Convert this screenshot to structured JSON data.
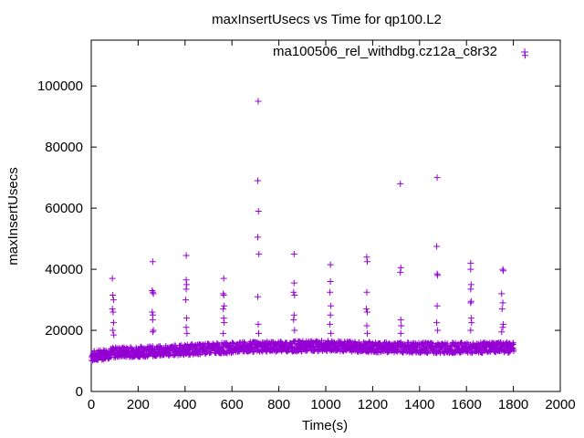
{
  "chart_data": {
    "type": "scatter",
    "title": "maxInsertUsecs vs Time for qp100.L2",
    "xlabel": "Time(s)",
    "ylabel": "maxInsertUsecs",
    "xlim": [
      0,
      2000
    ],
    "ylim": [
      0,
      115000
    ],
    "x_ticks": [
      0,
      200,
      400,
      600,
      800,
      1000,
      1200,
      1400,
      1600,
      1800,
      2000
    ],
    "y_ticks": [
      0,
      20000,
      40000,
      60000,
      80000,
      100000
    ],
    "grid": false,
    "legend_position": "top-right",
    "marker": "+",
    "series": [
      {
        "name": "ma100506_rel_withdbg.cz12a_c8r32",
        "color": "#9400d3",
        "baseline": {
          "x_range": [
            0,
            1800
          ],
          "y_points": [
            [
              0,
              11500
            ],
            [
              100,
              12800
            ],
            [
              300,
              13200
            ],
            [
              500,
              14000
            ],
            [
              700,
              14600
            ],
            [
              1000,
              14900
            ],
            [
              1200,
              14500
            ],
            [
              1500,
              14200
            ],
            [
              1800,
              14400
            ]
          ],
          "spread": 1800
        },
        "spikes": [
          [
            90,
            37000
          ],
          [
            92,
            31500
          ],
          [
            95,
            30000
          ],
          [
            90,
            27000
          ],
          [
            93,
            26000
          ],
          [
            95,
            22500
          ],
          [
            92,
            20000
          ],
          [
            96,
            18500
          ],
          [
            262,
            42500
          ],
          [
            260,
            33000
          ],
          [
            263,
            32500
          ],
          [
            265,
            32000
          ],
          [
            260,
            26000
          ],
          [
            263,
            25000
          ],
          [
            262,
            23500
          ],
          [
            265,
            20000
          ],
          [
            262,
            19500
          ],
          [
            405,
            44500
          ],
          [
            405,
            36500
          ],
          [
            407,
            35000
          ],
          [
            405,
            33500
          ],
          [
            403,
            30000
          ],
          [
            407,
            24000
          ],
          [
            405,
            21000
          ],
          [
            408,
            19000
          ],
          [
            565,
            37000
          ],
          [
            563,
            32000
          ],
          [
            565,
            31500
          ],
          [
            567,
            28000
          ],
          [
            563,
            27000
          ],
          [
            565,
            24000
          ],
          [
            567,
            22500
          ],
          [
            563,
            19000
          ],
          [
            712,
            95000
          ],
          [
            710,
            69000
          ],
          [
            713,
            59000
          ],
          [
            710,
            50500
          ],
          [
            715,
            45000
          ],
          [
            710,
            31000
          ],
          [
            712,
            22000
          ],
          [
            714,
            19000
          ],
          [
            865,
            45000
          ],
          [
            865,
            35500
          ],
          [
            863,
            32500
          ],
          [
            867,
            31500
          ],
          [
            865,
            25000
          ],
          [
            863,
            23500
          ],
          [
            867,
            20000
          ],
          [
            1020,
            41500
          ],
          [
            1020,
            36000
          ],
          [
            1018,
            32500
          ],
          [
            1022,
            28000
          ],
          [
            1020,
            25000
          ],
          [
            1018,
            22000
          ],
          [
            1022,
            19000
          ],
          [
            1175,
            44000
          ],
          [
            1177,
            42500
          ],
          [
            1175,
            32500
          ],
          [
            1173,
            27000
          ],
          [
            1177,
            26000
          ],
          [
            1175,
            21500
          ],
          [
            1177,
            19000
          ],
          [
            1318,
            68000
          ],
          [
            1320,
            40500
          ],
          [
            1318,
            39000
          ],
          [
            1320,
            23500
          ],
          [
            1322,
            21500
          ],
          [
            1320,
            19000
          ],
          [
            1475,
            70000
          ],
          [
            1473,
            47500
          ],
          [
            1475,
            38500
          ],
          [
            1477,
            38000
          ],
          [
            1475,
            28000
          ],
          [
            1473,
            22500
          ],
          [
            1477,
            20000
          ],
          [
            1618,
            42000
          ],
          [
            1618,
            40000
          ],
          [
            1620,
            35000
          ],
          [
            1618,
            33500
          ],
          [
            1620,
            29500
          ],
          [
            1618,
            29000
          ],
          [
            1620,
            24000
          ],
          [
            1622,
            22500
          ],
          [
            1618,
            20000
          ],
          [
            1755,
            40000
          ],
          [
            1757,
            39500
          ],
          [
            1750,
            32000
          ],
          [
            1755,
            29000
          ],
          [
            1752,
            27000
          ],
          [
            1757,
            22000
          ],
          [
            1755,
            21000
          ],
          [
            1750,
            19500
          ],
          [
            1850,
            110000
          ]
        ]
      }
    ]
  }
}
